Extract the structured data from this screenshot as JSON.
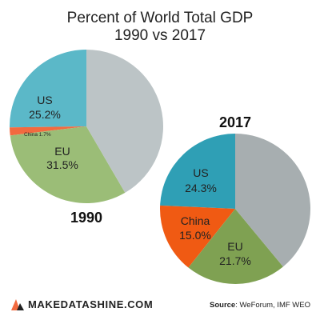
{
  "chart_data": [
    {
      "type": "pie",
      "title": "1990",
      "slices": [
        {
          "label": "US",
          "value": 25.2,
          "display": "25.2%",
          "color": "#5bb8c8"
        },
        {
          "label": "China",
          "value": 1.7,
          "display": "1.7%",
          "color": "#f26a3f"
        },
        {
          "label": "EU",
          "value": 31.5,
          "display": "31.5%",
          "color": "#9bbd77"
        },
        {
          "label": "",
          "value": 41.6,
          "display": "",
          "color": "#bcc4c6"
        }
      ]
    },
    {
      "type": "pie",
      "title": "2017",
      "slices": [
        {
          "label": "US",
          "value": 24.3,
          "display": "24.3%",
          "color": "#2f9fb5"
        },
        {
          "label": "China",
          "value": 15.0,
          "display": "15.0%",
          "color": "#f05a13"
        },
        {
          "label": "EU",
          "value": 21.7,
          "display": "21.7%",
          "color": "#7fa152"
        },
        {
          "label": "",
          "value": 39.0,
          "display": "",
          "color": "#a7aeb0"
        }
      ]
    }
  ],
  "header": {
    "title_line1": "Percent of World Total GDP",
    "title_line2": "1990 vs 2017"
  },
  "footer": {
    "brand": "MAKEDATASHINE.COM",
    "source_label": "Source",
    "source_text": ": WeForum, IMF WEO",
    "brand_color": "#f26a3f"
  }
}
